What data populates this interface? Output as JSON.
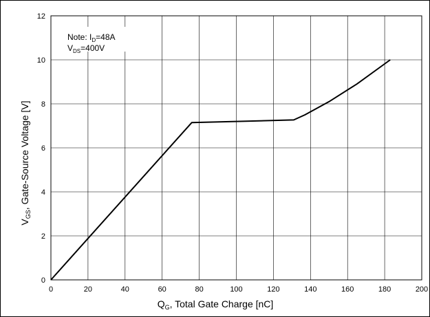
{
  "chart_data": {
    "type": "line",
    "x_label": {
      "main": "Q",
      "sub": "G",
      "rest": ", Total Gate Charge [nC]"
    },
    "y_label": {
      "main": "V",
      "sub": "GS",
      "rest": ", Gate-Source Voltage [V]"
    },
    "xlim": [
      0,
      200
    ],
    "ylim": [
      0,
      12
    ],
    "x_ticks": [
      0,
      20,
      40,
      60,
      80,
      100,
      120,
      140,
      160,
      180,
      200
    ],
    "y_ticks": [
      0,
      2,
      4,
      6,
      8,
      10,
      12
    ],
    "grid": true,
    "note": {
      "line1": {
        "prefix": "Note: I",
        "sub": "D",
        "suffix": "=48A"
      },
      "line2": {
        "prefix": "V",
        "sub": "DS",
        "suffix": "=400V"
      }
    },
    "series": [
      {
        "x": [
          0,
          76,
          100,
          131,
          137,
          150,
          165,
          183
        ],
        "y": [
          0,
          7.15,
          7.2,
          7.27,
          7.5,
          8.1,
          8.9,
          10.0
        ]
      }
    ],
    "colors": {
      "line": "#000000",
      "grid": "#000000"
    }
  }
}
